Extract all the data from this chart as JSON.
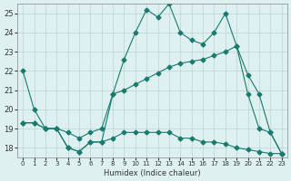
{
  "xlabel": "Humidex (Indice chaleur)",
  "x": [
    0,
    1,
    2,
    3,
    4,
    5,
    6,
    7,
    8,
    9,
    10,
    11,
    12,
    13,
    14,
    15,
    16,
    17,
    18,
    19,
    20,
    21,
    22,
    23
  ],
  "line1": [
    22,
    20,
    19,
    19,
    18,
    17.8,
    18.3,
    18.3,
    20.8,
    22.6,
    24,
    25.2,
    24.8,
    25.5,
    24,
    23.6,
    23.4,
    24.0,
    25.0,
    23.3,
    20.8,
    19.0,
    18.8,
    17.7
  ],
  "line2": [
    19.3,
    19.3,
    19.0,
    19.0,
    18.8,
    18.5,
    18.8,
    19.0,
    20.8,
    21.0,
    21.3,
    21.6,
    21.9,
    22.2,
    22.4,
    22.5,
    22.6,
    22.8,
    23.0,
    23.3,
    21.8,
    20.8,
    18.8,
    17.7
  ],
  "line3": [
    19.3,
    19.3,
    19.0,
    19.0,
    18.0,
    17.8,
    18.3,
    18.3,
    18.5,
    18.8,
    18.8,
    18.8,
    18.8,
    18.8,
    18.5,
    18.5,
    18.3,
    18.3,
    18.2,
    18.0,
    17.9,
    17.8,
    17.7,
    17.7
  ],
  "line_color": "#1a7a6e",
  "bg_color": "#dff0f0",
  "grid_color": "#b8d4d4",
  "ylim": [
    17.5,
    25.5
  ],
  "xlim": [
    -0.5,
    23.5
  ],
  "yticks": [
    18,
    19,
    20,
    21,
    22,
    23,
    24,
    25
  ],
  "xticks": [
    0,
    1,
    2,
    3,
    4,
    5,
    6,
    7,
    8,
    9,
    10,
    11,
    12,
    13,
    14,
    15,
    16,
    17,
    18,
    19,
    20,
    21,
    22,
    23
  ],
  "markersize": 2.5,
  "linewidth": 0.8
}
